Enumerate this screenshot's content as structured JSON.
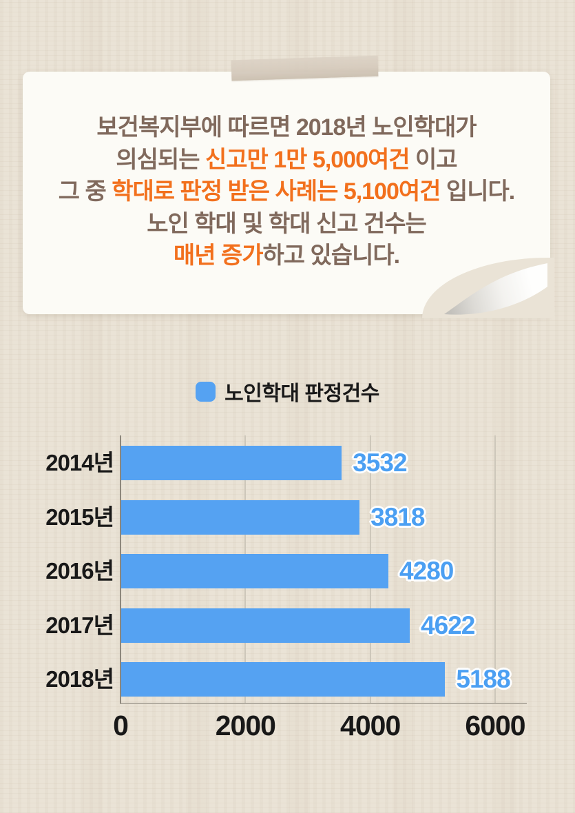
{
  "colors": {
    "page_bg": "#eae3d6",
    "card_bg": "#fcfbf6",
    "tape": "#d6cbbd",
    "text_brown": "#80695c",
    "accent_orange": "#f2701d",
    "bar_blue": "#55a2f2",
    "value_blue": "#4b9ff2",
    "grid_gray": "#cdc7ba",
    "axis_gray": "#8d877c",
    "label_black": "#181818"
  },
  "note": {
    "lines": [
      {
        "segments": [
          {
            "text": "보건복지부에 따르면 2018년 노인학대가",
            "color": "brown"
          }
        ]
      },
      {
        "segments": [
          {
            "text": "의심되는 ",
            "color": "brown"
          },
          {
            "text": "신고만  1만 5,000여건",
            "color": "orange"
          },
          {
            "text": " 이고",
            "color": "brown"
          }
        ]
      },
      {
        "segments": [
          {
            "text": "그 중 ",
            "color": "brown"
          },
          {
            "text": "학대로 판정 받은 사례는 5,100여건",
            "color": "orange"
          },
          {
            "text": " 입니다.",
            "color": "brown"
          }
        ]
      },
      {
        "segments": [
          {
            "text": "노인 학대 및 학대 신고 건수는",
            "color": "brown"
          }
        ]
      },
      {
        "segments": [
          {
            "text": "매년 증가",
            "color": "orange"
          },
          {
            "text": "하고 있습니다.",
            "color": "brown"
          }
        ]
      }
    ]
  },
  "legend": {
    "label": "노인학대 판정건수"
  },
  "chart_data": {
    "type": "bar",
    "orientation": "horizontal",
    "title": "",
    "series_name": "노인학대 판정건수",
    "categories": [
      "2014년",
      "2015년",
      "2016년",
      "2017년",
      "2018년"
    ],
    "values": [
      3532,
      3818,
      4280,
      4622,
      5188
    ],
    "xlabel": "",
    "ylabel": "",
    "xlim": [
      0,
      6000
    ],
    "x_ticks": [
      0,
      2000,
      4000,
      6000
    ],
    "grid": "vertical",
    "legend_position": "top-center",
    "value_labels": "outside-end"
  }
}
